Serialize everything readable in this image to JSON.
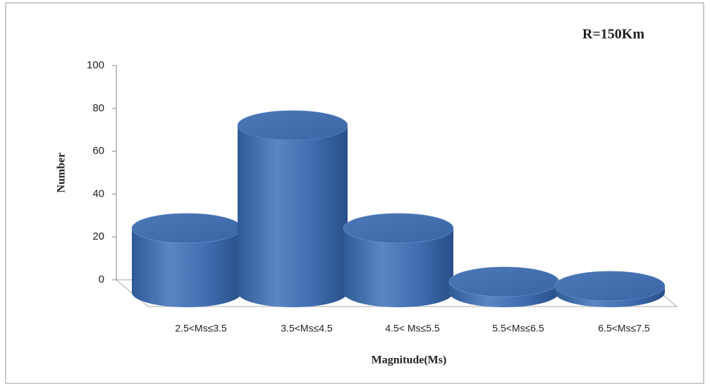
{
  "chart_data": {
    "type": "bar",
    "annotation": "R=150Km",
    "y_label": "Number",
    "x_label": "Magnitude(Ms)",
    "categories": [
      "2.5<Ms≤3.5",
      "3.5<Ms≤4.5",
      "4.5< Ms≤5.5",
      "5.5<Ms≤6.5",
      "6.5<Ms≤7.5"
    ],
    "values": [
      30,
      78,
      30,
      5,
      3
    ],
    "color": "#4a76b6",
    "ylim": [
      0,
      100
    ],
    "yticks": [
      0,
      20,
      40,
      60,
      80,
      100
    ]
  }
}
